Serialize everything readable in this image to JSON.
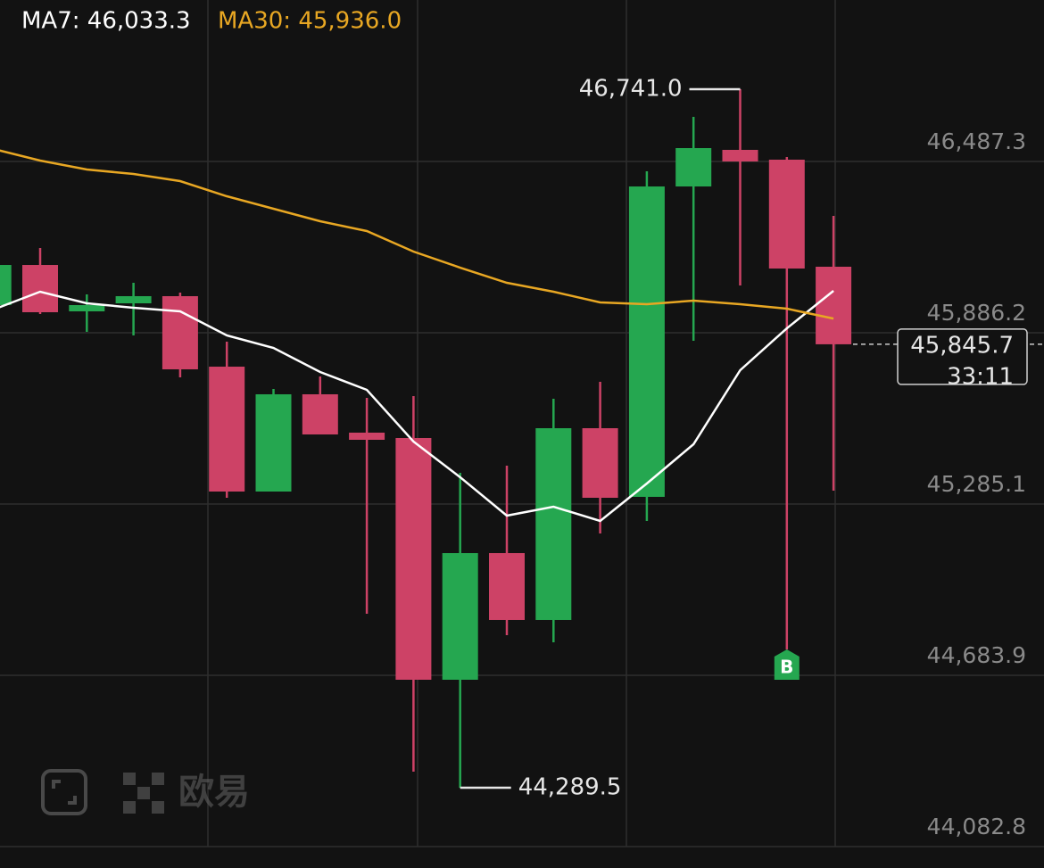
{
  "chart_data": {
    "type": "candlestick",
    "up_color": "#25a750",
    "down_color": "#cd4266",
    "ylim": [
      44007.7,
      47054.0
    ],
    "yticks": [
      {
        "value": 46487.3,
        "label": "46,487.3"
      },
      {
        "value": 45886.2,
        "label": "45,886.2"
      },
      {
        "value": 45285.1,
        "label": "45,285.1"
      },
      {
        "value": 44683.9,
        "label": "44,683.9"
      },
      {
        "value": 44082.8,
        "label": "44,082.8"
      }
    ],
    "grid": true,
    "open": [
      45983.3,
      46124.1,
      45961.3,
      45989.5,
      46014.6,
      45767.2,
      45328.9,
      45670.2,
      45535.6,
      45516.8,
      44668.4,
      45112.9,
      44878.1,
      45551.2,
      45310.2,
      46399.6,
      46528.0,
      46493.6,
      46117.9
    ],
    "high": [
      46124.1,
      46183.6,
      46020.8,
      46061.5,
      46027.1,
      45854.9,
      45689.0,
      45732.8,
      45657.7,
      45663.9,
      45394.7,
      45419.8,
      45654.5,
      45714.0,
      46452.9,
      46643.8,
      46741.0,
      46503.0,
      46296.3
    ],
    "low": [
      45983.3,
      45951.9,
      45889.3,
      45876.8,
      45729.7,
      45307.0,
      45328.9,
      45529.3,
      44900.0,
      44345.9,
      44289.5,
      44824.9,
      44799.8,
      45181.8,
      45225.6,
      45858.0,
      46052.1,
      44774.8,
      45332.0
    ],
    "close": [
      46124.1,
      45958.2,
      45983.3,
      46014.6,
      45757.8,
      45328.9,
      45670.2,
      45529.3,
      45510.5,
      44668.4,
      45112.9,
      44878.1,
      45551.2,
      45307.0,
      46399.6,
      46534.3,
      46487.3,
      46111.6,
      45845.7
    ],
    "series": [
      {
        "name": "MA7: 46,033.3",
        "color": "#ffffff",
        "values": [
          45967.6,
          46030.2,
          45989.5,
          45973.9,
          45961.3,
          45876.8,
          45833.0,
          45748.5,
          45685.8,
          45504.3,
          45379.1,
          45244.4,
          45275.7,
          45225.6,
          45357.1,
          45494.9,
          45754.7,
          45901.8,
          46033.3
        ]
      },
      {
        "name": "MA30: 45,936.0",
        "color": "#e8a723",
        "values": [
          46531.1,
          46490.4,
          46459.1,
          46443.5,
          46418.4,
          46365.2,
          46321.4,
          46277.5,
          46243.1,
          46171.1,
          46114.7,
          46061.5,
          46030.2,
          45992.7,
          45986.4,
          45998.9,
          45986.4,
          45970.7,
          45936.0
        ]
      }
    ],
    "annotations": {
      "high": {
        "value": 46741.0,
        "label": "46,741.0"
      },
      "low": {
        "value": 44289.5,
        "label": "44,289.5"
      },
      "current": {
        "value": 45845.7,
        "label": "45,845.7",
        "countdown": "33:11"
      },
      "marker": "B"
    },
    "watermark": "欧易"
  }
}
